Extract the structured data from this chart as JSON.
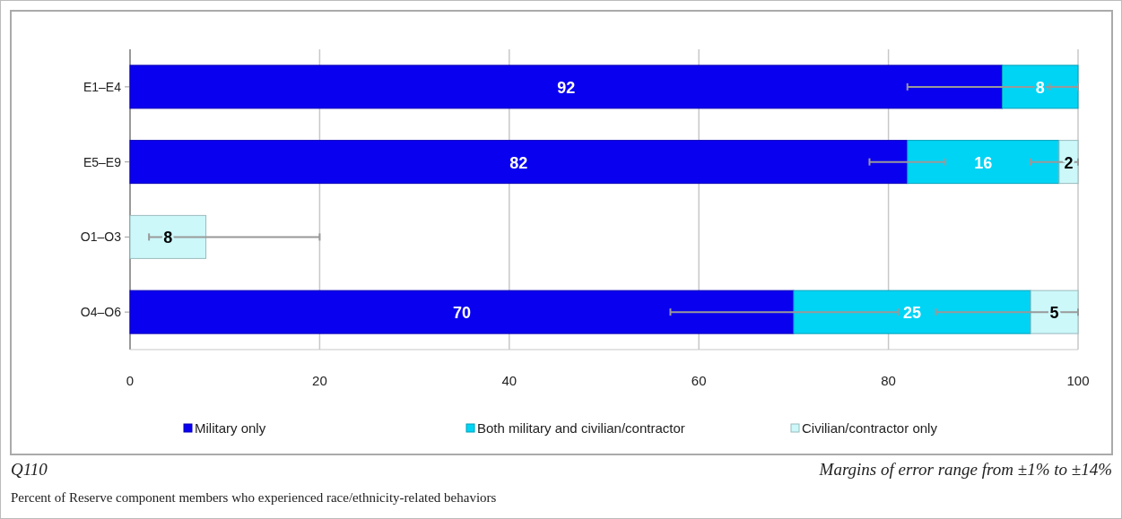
{
  "chart_data": {
    "type": "bar",
    "orientation": "horizontal",
    "stacked": true,
    "categories": [
      "E1–E4",
      "E5–E9",
      "O1–O3",
      "O4–O6"
    ],
    "series": [
      {
        "name": "Military only",
        "color": "#0a00f0",
        "values": [
          92,
          82,
          null,
          70
        ],
        "errors": [
          [
            82,
            100
          ],
          [
            78,
            86
          ],
          null,
          [
            57,
            81
          ]
        ]
      },
      {
        "name": "Both military and civilian/contractor",
        "color": "#00d4f5",
        "values": [
          8,
          16,
          null,
          25
        ],
        "errors": [
          [
            97,
            100
          ],
          [
            95,
            100
          ],
          null,
          [
            85,
            100
          ]
        ]
      },
      {
        "name": "Civilian/contractor only",
        "color": "#ccf8fa",
        "values": [
          null,
          2,
          8,
          5
        ],
        "errors": [
          null,
          null,
          [
            2,
            20
          ],
          null
        ]
      }
    ],
    "xlim": [
      0,
      100
    ],
    "xticks": [
      0,
      20,
      40,
      60,
      80,
      100
    ],
    "grid": "x",
    "legend": "bottom",
    "data_labels": true,
    "annotations": [
      "Q110",
      "Margins of error range from ±1% to ±14%",
      "Percent of Reserve component members who experienced race/ethnicity-related behaviors"
    ]
  }
}
